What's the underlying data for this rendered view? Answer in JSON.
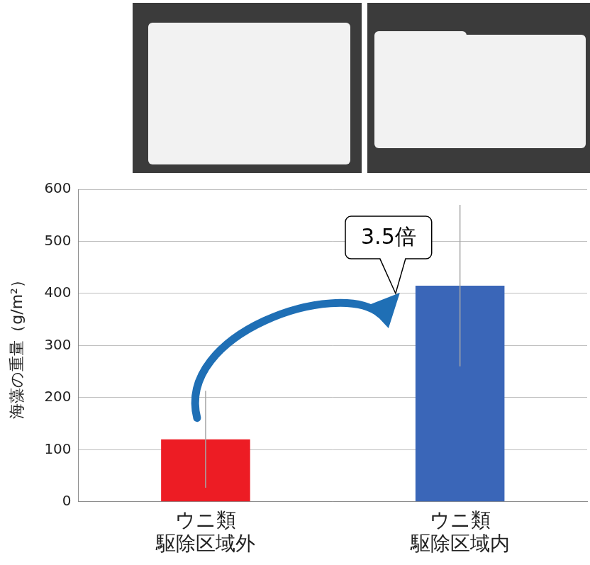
{
  "chart_data": {
    "type": "bar",
    "y_label": "海藻の重量（g/m²）",
    "categories": [
      "ウニ類 駆除区域外",
      "ウニ類 駆除区域内"
    ],
    "values": [
      120,
      415
    ],
    "errors": [
      93,
      155
    ],
    "colors": [
      "#ed1c24",
      "#3a66b8"
    ],
    "annotation": "3.5倍",
    "ylim": [
      0,
      600
    ],
    "yticks": [
      0,
      100,
      200,
      300,
      400,
      500,
      600
    ],
    "grid": true
  }
}
